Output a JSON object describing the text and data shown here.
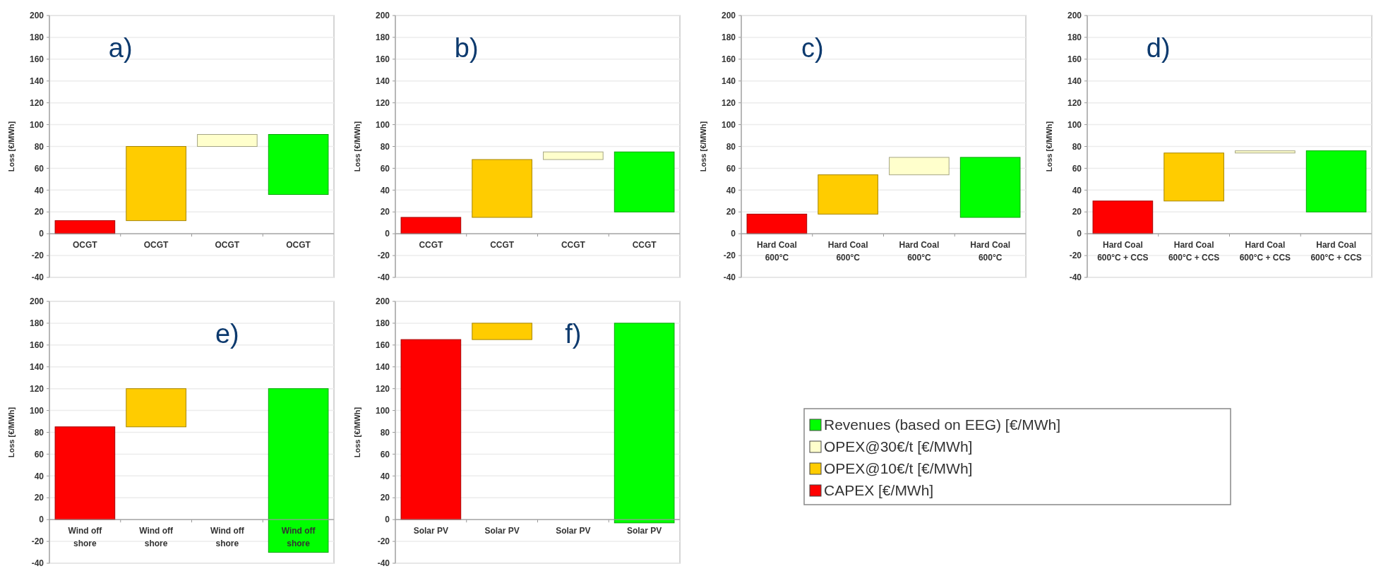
{
  "chart_data": [
    {
      "type": "bar",
      "ylabel": "Loss [€/MWh]",
      "annotations": [
        "a)"
      ],
      "categories": [
        "OCGT",
        "OCGT",
        "OCGT",
        "OCGT"
      ],
      "series": [
        {
          "color": "#00ff00",
          "values": [
            null,
            null,
            null,
            55
          ],
          "base": [
            null,
            null,
            null,
            36
          ]
        },
        {
          "color": "#ffffcc",
          "values": [
            null,
            null,
            11,
            null
          ],
          "base": [
            null,
            null,
            80,
            null
          ]
        },
        {
          "color": "#ffcc00",
          "values": [
            null,
            68,
            null,
            null
          ],
          "base": [
            null,
            12,
            null,
            null
          ]
        },
        {
          "color": "#ff0000",
          "values": [
            12,
            null,
            null,
            null
          ],
          "base": [
            0,
            null,
            null,
            null
          ]
        }
      ],
      "ylim": [
        -40,
        200
      ],
      "yticks": [
        -40,
        -20,
        0,
        20,
        40,
        60,
        80,
        100,
        120,
        140,
        160,
        180,
        200
      ],
      "grid": "y"
    },
    {
      "type": "bar",
      "ylabel": "Loss [€/MWh]",
      "annotations": [
        "b)"
      ],
      "categories": [
        "CCGT",
        "CCGT",
        "CCGT",
        "CCGT"
      ],
      "series": [
        {
          "color": "#00ff00",
          "values": [
            null,
            null,
            null,
            55
          ],
          "base": [
            null,
            null,
            null,
            20
          ]
        },
        {
          "color": "#ffffcc",
          "values": [
            null,
            null,
            7,
            null
          ],
          "base": [
            null,
            null,
            68,
            null
          ]
        },
        {
          "color": "#ffcc00",
          "values": [
            null,
            53,
            null,
            null
          ],
          "base": [
            null,
            15,
            null,
            null
          ]
        },
        {
          "color": "#ff0000",
          "values": [
            15,
            null,
            null,
            null
          ],
          "base": [
            0,
            null,
            null,
            null
          ]
        }
      ],
      "ylim": [
        -40,
        200
      ],
      "yticks": [
        -40,
        -20,
        0,
        20,
        40,
        60,
        80,
        100,
        120,
        140,
        160,
        180,
        200
      ],
      "grid": "y"
    },
    {
      "type": "bar",
      "ylabel": "Loss [€/MWh]",
      "annotations": [
        "c)"
      ],
      "categories": [
        "Hard Coal 600°C",
        "Hard Coal 600°C",
        "Hard Coal 600°C",
        "Hard Coal 600°C"
      ],
      "series": [
        {
          "color": "#00ff00",
          "values": [
            null,
            null,
            null,
            55
          ],
          "base": [
            null,
            null,
            null,
            15
          ]
        },
        {
          "color": "#ffffcc",
          "values": [
            null,
            null,
            16,
            null
          ],
          "base": [
            null,
            null,
            54,
            null
          ]
        },
        {
          "color": "#ffcc00",
          "values": [
            null,
            36,
            null,
            null
          ],
          "base": [
            null,
            18,
            null,
            null
          ]
        },
        {
          "color": "#ff0000",
          "values": [
            18,
            null,
            null,
            null
          ],
          "base": [
            0,
            null,
            null,
            null
          ]
        }
      ],
      "ylim": [
        -40,
        200
      ],
      "yticks": [
        -40,
        -20,
        0,
        20,
        40,
        60,
        80,
        100,
        120,
        140,
        160,
        180,
        200
      ],
      "grid": "y"
    },
    {
      "type": "bar",
      "ylabel": "Loss [€/MWh]",
      "annotations": [
        "d)"
      ],
      "categories": [
        "Hard Coal 600°C + CCS",
        "Hard Coal 600°C + CCS",
        "Hard Coal 600°C + CCS",
        "Hard Coal 600°C + CCS"
      ],
      "series": [
        {
          "color": "#00ff00",
          "values": [
            null,
            null,
            null,
            56
          ],
          "base": [
            null,
            null,
            null,
            20
          ]
        },
        {
          "color": "#ffffcc",
          "values": [
            null,
            null,
            2,
            null
          ],
          "base": [
            null,
            null,
            74,
            null
          ]
        },
        {
          "color": "#ffcc00",
          "values": [
            null,
            44,
            null,
            null
          ],
          "base": [
            null,
            30,
            null,
            null
          ]
        },
        {
          "color": "#ff0000",
          "values": [
            30,
            null,
            null,
            null
          ],
          "base": [
            0,
            null,
            null,
            null
          ]
        }
      ],
      "ylim": [
        -40,
        200
      ],
      "yticks": [
        -40,
        -20,
        0,
        20,
        40,
        60,
        80,
        100,
        120,
        140,
        160,
        180,
        200
      ],
      "grid": "y"
    },
    {
      "type": "bar",
      "ylabel": "Loss [€/MWh]",
      "annotations": [
        "e)"
      ],
      "categories": [
        "Wind off shore",
        "Wind off shore",
        "Wind off shore",
        "Wind off shore"
      ],
      "series": [
        {
          "color": "#00ff00",
          "values": [
            null,
            null,
            null,
            150
          ],
          "base": [
            null,
            null,
            null,
            -30
          ]
        },
        {
          "color": "#ffcc00",
          "values": [
            null,
            35,
            null,
            null
          ],
          "base": [
            null,
            85,
            null,
            null
          ]
        },
        {
          "color": "#ff0000",
          "values": [
            85,
            null,
            null,
            null
          ],
          "base": [
            0,
            null,
            null,
            null
          ]
        }
      ],
      "ylim": [
        -40,
        200
      ],
      "yticks": [
        -40,
        -20,
        0,
        20,
        40,
        60,
        80,
        100,
        120,
        140,
        160,
        180,
        200
      ],
      "grid": "y"
    },
    {
      "type": "bar",
      "ylabel": "Loss [€/MWh]",
      "annotations": [
        "f)"
      ],
      "categories": [
        "Solar PV",
        "Solar PV",
        "Solar PV",
        "Solar PV"
      ],
      "series": [
        {
          "name": "Revenues (based on EEG) [€/MWh]",
          "color": "#00ff00",
          "values": [
            null,
            null,
            null,
            183
          ],
          "base": [
            null,
            null,
            null,
            -3
          ]
        },
        {
          "name": "OPEX@30€/t [€/MWh]",
          "color": "#ffffcc",
          "values": [
            null,
            null,
            null,
            null
          ]
        },
        {
          "name": "OPEX@10€/t [€/MWh]",
          "color": "#ffcc00",
          "values": [
            null,
            15,
            null,
            null
          ],
          "base": [
            null,
            165,
            null,
            null
          ]
        },
        {
          "name": "CAPEX  [€/MWh]",
          "color": "#ff0000",
          "values": [
            165,
            null,
            null,
            null
          ],
          "base": [
            0,
            null,
            null,
            null
          ]
        }
      ],
      "ylim": [
        -40,
        200
      ],
      "yticks": [
        -40,
        -20,
        0,
        20,
        40,
        60,
        80,
        100,
        120,
        140,
        160,
        180,
        200
      ],
      "grid": "y",
      "legend": "right"
    }
  ]
}
